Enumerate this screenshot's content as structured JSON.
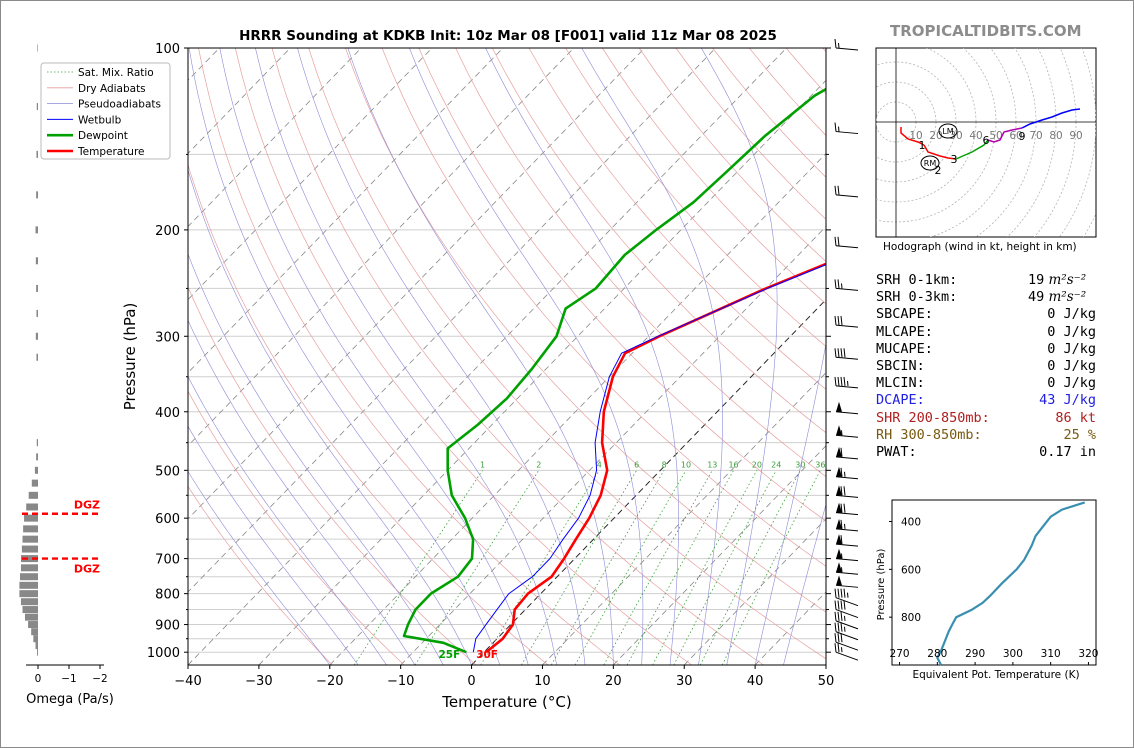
{
  "title": "HRRR Sounding at KDKB Init: 10z Mar 08 [F001] valid 11z Mar 08 2025",
  "brand": "TROPICALTIDBITS.COM",
  "chart_data": [
    {
      "type": "line",
      "name": "skew-t",
      "xlabel": "Temperature (°C)",
      "ylabel": "Pressure (hPa)",
      "xlim": [
        -40,
        50
      ],
      "ylim": [
        1050,
        100
      ],
      "yscale": "log",
      "grid": true,
      "x_ticks": [
        "−40",
        "−30",
        "−20",
        "−10",
        "0",
        "10",
        "20",
        "30",
        "40",
        "50"
      ],
      "y_ticks": [
        "100",
        "200",
        "300",
        "400",
        "500",
        "600",
        "700",
        "800",
        "900",
        "1000"
      ],
      "legend": {
        "position": "top-left",
        "entries": [
          "Sat. Mix. Ratio",
          "Dry Adiabats",
          "Pseudoadiabats",
          "Wetbulb",
          "Dewpoint",
          "Temperature"
        ]
      },
      "mixing_ratio_labels": [
        "1",
        "2",
        "4",
        "6",
        "8",
        "10",
        "13",
        "16",
        "20",
        "24",
        "30",
        "36"
      ],
      "surface_labels": {
        "dewpoint": "25F",
        "temperature": "30F"
      },
      "series": [
        {
          "name": "Temperature",
          "color": "#ff0000",
          "points": [
            [
              0.3,
              1000
            ],
            [
              0.8,
              950
            ],
            [
              0.3,
              900
            ],
            [
              -1.5,
              850
            ],
            [
              -1.8,
              800
            ],
            [
              -0.8,
              750
            ],
            [
              -1.5,
              700
            ],
            [
              -2.5,
              650
            ],
            [
              -3.5,
              600
            ],
            [
              -5,
              550
            ],
            [
              -7.5,
              500
            ],
            [
              -12,
              450
            ],
            [
              -16,
              400
            ],
            [
              -19.5,
              350
            ],
            [
              -21,
              320
            ],
            [
              -18.5,
              300
            ],
            [
              -10,
              250
            ],
            [
              -3,
              220
            ],
            [
              0,
              200
            ],
            [
              1.8,
              180
            ],
            [
              3.5,
              160
            ],
            [
              5.5,
              140
            ],
            [
              6.5,
              130
            ],
            [
              7.5,
              115
            ],
            [
              8.2,
              100
            ]
          ]
        },
        {
          "name": "Wetbulb",
          "color": "#0000ff",
          "points": [
            [
              -1.5,
              1000
            ],
            [
              -3,
              950
            ],
            [
              -3.5,
              900
            ],
            [
              -4,
              850
            ],
            [
              -4.5,
              800
            ],
            [
              -3.5,
              750
            ],
            [
              -3.5,
              700
            ],
            [
              -4.3,
              650
            ],
            [
              -5,
              600
            ],
            [
              -6.5,
              550
            ],
            [
              -9,
              500
            ],
            [
              -13,
              450
            ],
            [
              -16.5,
              400
            ],
            [
              -20,
              350
            ],
            [
              -21.5,
              320
            ],
            [
              -18.7,
              300
            ],
            [
              -9.8,
              250
            ],
            [
              -2.7,
              220
            ],
            [
              0.2,
              200
            ],
            [
              2,
              180
            ],
            [
              3.7,
              160
            ],
            [
              5.7,
              140
            ],
            [
              6.7,
              130
            ],
            [
              7.6,
              115
            ],
            [
              8.2,
              100
            ]
          ]
        },
        {
          "name": "Dewpoint",
          "color": "#00a000",
          "points": [
            [
              -2.5,
              1000
            ],
            [
              -7,
              965
            ],
            [
              -13.5,
              940
            ],
            [
              -14.5,
              900
            ],
            [
              -15.5,
              850
            ],
            [
              -15.5,
              800
            ],
            [
              -14,
              750
            ],
            [
              -14.5,
              700
            ],
            [
              -17,
              650
            ],
            [
              -21,
              600
            ],
            [
              -26,
              550
            ],
            [
              -30,
              500
            ],
            [
              -33,
              460
            ],
            [
              -32,
              420
            ],
            [
              -31.5,
              380
            ],
            [
              -32,
              340
            ],
            [
              -33,
              300
            ],
            [
              -35.5,
              270
            ],
            [
              -34,
              250
            ],
            [
              -34.5,
              220
            ],
            [
              -33.5,
              200
            ],
            [
              -32,
              180
            ],
            [
              -31.5,
              160
            ],
            [
              -31,
              140
            ],
            [
              -29.5,
              120
            ],
            [
              -24.5,
              100
            ]
          ]
        }
      ],
      "wind_barbs_kt": [
        25,
        30,
        35,
        35,
        40,
        45,
        50,
        55,
        55,
        60,
        65,
        70,
        70,
        65,
        60,
        55,
        50,
        45,
        40,
        30,
        25,
        20,
        20,
        15,
        15
      ]
    },
    {
      "type": "bar",
      "name": "omega",
      "xlabel": "Omega (Pa/s)",
      "xlim": [
        0,
        -2
      ],
      "x_ticks": [
        "0",
        "−1",
        "−2"
      ],
      "pressure_levels": [
        1000,
        975,
        950,
        925,
        900,
        875,
        850,
        825,
        800,
        775,
        750,
        725,
        700,
        675,
        650,
        625,
        600,
        575,
        550,
        525,
        500,
        475,
        450,
        425,
        400,
        375,
        350,
        325,
        300,
        275,
        250,
        225,
        200,
        175,
        150,
        125,
        100
      ],
      "values": [
        0.03,
        0.08,
        0.15,
        0.22,
        0.32,
        0.42,
        0.5,
        0.55,
        0.6,
        0.6,
        0.58,
        0.55,
        0.55,
        0.52,
        0.5,
        0.48,
        0.45,
        0.38,
        0.3,
        0.2,
        0.1,
        0.06,
        0.04,
        0,
        0,
        0,
        0,
        0.05,
        0.07,
        0.05,
        0.06,
        0.07,
        0.08,
        0.06,
        0.05,
        0.04,
        0.02
      ],
      "dgz_label": "DGZ",
      "dgz_levels_hpa": [
        590,
        700
      ]
    },
    {
      "type": "line",
      "name": "hodograph",
      "caption": "Hodograph (wind in kt, height in km)",
      "ring_labels": [
        "10",
        "20",
        "30",
        "40",
        "50",
        "60",
        "70",
        "80",
        "90"
      ],
      "height_labels": [
        "1",
        "2",
        "3",
        "6",
        "9"
      ],
      "markers": [
        "LM",
        "RM"
      ],
      "series": [
        {
          "name": "0-1 km",
          "color": "#ff0000",
          "points": [
            [
              2.5,
              -2.5
            ],
            [
              2.5,
              -5.5
            ],
            [
              6,
              -8.5
            ],
            [
              11,
              -10
            ],
            [
              14,
              -11.5
            ]
          ]
        },
        {
          "name": "1-3 km",
          "color": "#ff0000",
          "points": [
            [
              14,
              -11.5
            ],
            [
              16,
              -15
            ],
            [
              22,
              -17
            ],
            [
              26,
              -18
            ],
            [
              30,
              -18.5
            ]
          ]
        },
        {
          "name": "3-6 km",
          "color": "#00a000",
          "points": [
            [
              30,
              -18.5
            ],
            [
              38,
              -15
            ],
            [
              44,
              -11.5
            ],
            [
              46,
              -9
            ]
          ]
        },
        {
          "name": "6-9 km",
          "color": "#b000b0",
          "points": [
            [
              46,
              -9
            ],
            [
              49,
              -10
            ],
            [
              52,
              -9
            ],
            [
              54,
              -5
            ],
            [
              58,
              -4
            ],
            [
              63,
              -3
            ]
          ]
        },
        {
          "name": "9+ km",
          "color": "#0000ff",
          "points": [
            [
              63,
              -3
            ],
            [
              67,
              -1
            ],
            [
              73,
              1
            ],
            [
              78,
              2.5
            ],
            [
              83,
              4.5
            ],
            [
              88,
              6
            ],
            [
              92,
              6.5
            ]
          ]
        }
      ],
      "lm": [
        26,
        -4.5
      ],
      "rm": [
        17,
        -20.5
      ]
    },
    {
      "type": "line",
      "name": "theta-e",
      "xlabel": "Equivalent Pot. Temperature (K)",
      "ylabel": "Pressure (hPa)",
      "xlim": [
        268,
        322
      ],
      "ylim": [
        1000,
        310
      ],
      "x_ticks": [
        "270",
        "280",
        "290",
        "300",
        "310",
        "320"
      ],
      "y_ticks": [
        "400",
        "600",
        "800"
      ],
      "color": "#3a8fb0",
      "points": [
        [
          281,
          1000
        ],
        [
          280,
          970
        ],
        [
          281,
          940
        ],
        [
          282,
          900
        ],
        [
          283,
          860
        ],
        [
          284,
          830
        ],
        [
          285,
          800
        ],
        [
          289,
          770
        ],
        [
          292,
          740
        ],
        [
          294,
          710
        ],
        [
          297,
          660
        ],
        [
          301,
          600
        ],
        [
          303,
          560
        ],
        [
          305,
          500
        ],
        [
          306,
          460
        ],
        [
          308,
          420
        ],
        [
          310,
          380
        ],
        [
          313,
          350
        ],
        [
          319,
          320
        ]
      ]
    }
  ],
  "stats": [
    {
      "key": "SRH 0-1km:",
      "value": "19",
      "unit": "m²s⁻²",
      "color": "#000000"
    },
    {
      "key": "SRH 0-3km:",
      "value": "49",
      "unit": "m²s⁻²",
      "color": "#000000"
    },
    {
      "key": "SBCAPE:",
      "value": "0 J/kg",
      "color": "#000000"
    },
    {
      "key": "MLCAPE:",
      "value": "0 J/kg",
      "color": "#000000"
    },
    {
      "key": "MUCAPE:",
      "value": "0 J/kg",
      "color": "#000000"
    },
    {
      "key": "SBCIN:",
      "value": "0 J/kg",
      "color": "#000000"
    },
    {
      "key": "MLCIN:",
      "value": "0 J/kg",
      "color": "#000000"
    },
    {
      "key": "DCAPE:",
      "value": "43 J/kg",
      "color": "#2020e0"
    },
    {
      "key": "SHR 200-850mb:",
      "value": "86 kt",
      "color": "#b02020"
    },
    {
      "key": "RH 300-850mb:",
      "value": "25 %",
      "color": "#7a5a10"
    },
    {
      "key": "PWAT:",
      "value": "0.17 in",
      "color": "#000000"
    }
  ]
}
